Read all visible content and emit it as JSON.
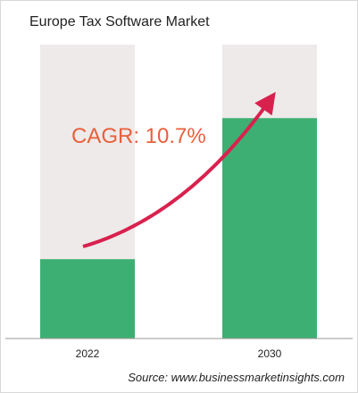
{
  "chart_data": {
    "type": "bar",
    "title": "Europe Tax Software Market",
    "categories": [
      "2022",
      "2030"
    ],
    "values": [
      0.27,
      0.75
    ],
    "ylim": [
      0,
      1
    ],
    "value_note": "relative bar heights, no axis scale printed",
    "annotation": "CAGR: 10.7%",
    "source": "Source: www.businessmarketinsights.com",
    "xlabel": "",
    "ylabel": "",
    "grid": false
  },
  "colors": {
    "bar": "#3daf72",
    "track": "#eeeaea",
    "arrow": "#d9214e",
    "cagr": "#e8603c",
    "axis": "#999999"
  }
}
